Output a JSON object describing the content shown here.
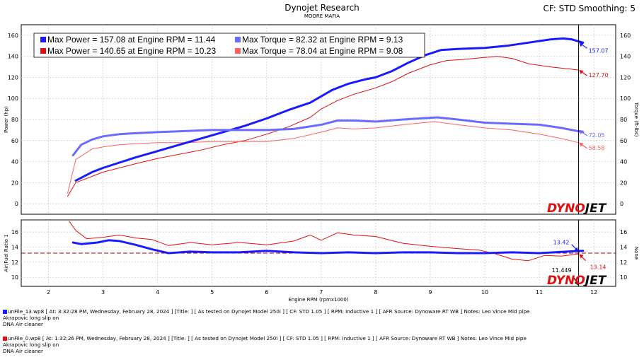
{
  "header": {
    "title": "Dynojet Research",
    "subtitle": "MOORE MAFIA",
    "cf_label": "CF: STD Smoothing: 5"
  },
  "legend": [
    {
      "text": "Max Power = 157.08 at Engine RPM = 11.44",
      "color": "#1a1aff"
    },
    {
      "text": "Max Torque = 82.32 at Engine RPM = 9.13",
      "color": "#6b6bff"
    },
    {
      "text": "Max Power = 140.65 at Engine RPM = 10.23",
      "color": "#e01010"
    },
    {
      "text": "Max Torque = 78.04 at Engine RPM = 9.08",
      "color": "#ff6060"
    }
  ],
  "runs": [
    {
      "line1": "unFile_13.wp8 [ At: 3:32:28 PM, Wednesday, February 28, 2024 ] [Title: ]  [ As tested on Dynojet Model 250i ] [ CF: STD 1.05 ] [ RPM: Inductive 1 ] [ AFR Source: Dynoware RT WB ] Notes: Leo Vince Mid pipe",
      "line2": "Akrapovic long slip on",
      "line3": "DNA Air cleaner",
      "color": "#1a1aff"
    },
    {
      "line1": "unFile_0.wp8 [ At: 1:32:26 PM, Wednesday, February 28, 2024 ] [Title: ]  [ As tested on Dynojet Model 250i ] [ CF: STD 1.05 ] [ RPM: Inductive 1 ] [ AFR Source: Dynoware RT WB ] Notes: Leo Vince Mid pipe",
      "line2": "Akrapovic long slip on",
      "line3": "DNA Air cleaner",
      "color": "#e01010"
    }
  ],
  "logo_text": "DYNOJET",
  "chart_data": [
    {
      "type": "line",
      "name": "power-torque",
      "ylabel_left": "Power (hp)",
      "ylabel_right": "Torque (ft-lbs)",
      "ylim_left": [
        -10,
        170
      ],
      "ylim_right": [
        -10,
        170
      ],
      "yticks_left": [
        0,
        20,
        40,
        60,
        80,
        100,
        120,
        140,
        160
      ],
      "yticks_right": [
        0,
        20,
        40,
        60,
        80,
        100,
        120,
        140,
        160
      ],
      "xlim": [
        1.5,
        12.4
      ],
      "cursor_x": 11.72,
      "cursor_labels": [
        {
          "text": "157.07",
          "x": 11.72,
          "y": 153,
          "color": "#1a1aff"
        },
        {
          "text": "127.70",
          "x": 11.72,
          "y": 127,
          "color": "#e01010"
        },
        {
          "text": "72.05",
          "x": 11.72,
          "y": 70,
          "color": "#6b6bff"
        },
        {
          "text": "58.58",
          "x": 11.72,
          "y": 58,
          "color": "#ff6060"
        }
      ],
      "series": [
        {
          "name": "Power",
          "color": "#1a1aff",
          "width": 3,
          "x": [
            2.5,
            2.8,
            3.0,
            3.3,
            3.6,
            4.0,
            4.4,
            4.8,
            5.2,
            5.6,
            6.0,
            6.4,
            6.8,
            7.2,
            7.5,
            7.8,
            8.0,
            8.3,
            8.6,
            8.9,
            9.2,
            9.5,
            10.0,
            10.4,
            10.8,
            11.2,
            11.44,
            11.6,
            11.8
          ],
          "y": [
            22,
            30,
            34,
            39,
            44,
            50,
            56,
            62,
            68,
            74,
            81,
            89,
            96,
            108,
            114,
            118,
            120,
            126,
            134,
            141,
            146,
            147,
            148,
            150,
            153,
            156,
            157,
            156,
            153
          ]
        },
        {
          "name": "Torque",
          "color": "#6b6bff",
          "width": 3,
          "x": [
            2.45,
            2.6,
            2.8,
            3.0,
            3.3,
            3.6,
            4.0,
            4.5,
            5.0,
            5.5,
            6.0,
            6.5,
            7.0,
            7.3,
            7.6,
            8.0,
            8.5,
            9.13,
            9.5,
            10.0,
            10.5,
            11.0,
            11.4,
            11.8
          ],
          "y": [
            46,
            56,
            61,
            64,
            66,
            67,
            68,
            69,
            70,
            70,
            70,
            71,
            75,
            79,
            79,
            78,
            80,
            82,
            80,
            77,
            76,
            75,
            72,
            68
          ]
        },
        {
          "name": "Power",
          "color": "#e01010",
          "width": 1,
          "x": [
            2.35,
            2.5,
            2.8,
            3.0,
            3.3,
            3.6,
            4.0,
            4.4,
            4.8,
            5.2,
            5.6,
            6.0,
            6.4,
            6.8,
            7.0,
            7.3,
            7.6,
            8.0,
            8.3,
            8.6,
            9.0,
            9.3,
            9.6,
            10.0,
            10.23,
            10.5,
            10.8,
            11.2,
            11.72
          ],
          "y": [
            7,
            20,
            26,
            30,
            34,
            38,
            43,
            47,
            51,
            56,
            60,
            66,
            73,
            82,
            90,
            98,
            104,
            110,
            116,
            124,
            132,
            136,
            137,
            139,
            140,
            138,
            133,
            130,
            127
          ]
        },
        {
          "name": "Torque",
          "color": "#ff6060",
          "width": 1,
          "x": [
            2.35,
            2.5,
            2.8,
            3.0,
            3.3,
            3.6,
            4.0,
            4.5,
            5.0,
            5.5,
            6.0,
            6.5,
            7.0,
            7.3,
            7.6,
            8.0,
            8.5,
            9.08,
            9.5,
            10.0,
            10.5,
            11.0,
            11.4,
            11.72
          ],
          "y": [
            10,
            42,
            52,
            54,
            56,
            57,
            58,
            58,
            59,
            59,
            59,
            62,
            68,
            72,
            71,
            72,
            75,
            78,
            75,
            72,
            70,
            66,
            62,
            58
          ]
        }
      ]
    },
    {
      "type": "line",
      "name": "air-fuel",
      "ylabel_left": "Air/Fuel Ratio 1",
      "ylabel_right": "None",
      "ylim_left": [
        8.8,
        17.6
      ],
      "yticks_left": [
        10,
        12,
        14,
        16
      ],
      "yticks_right": [
        10,
        12,
        14,
        16
      ],
      "xlabel": "Engine RPM (rpmx1000)",
      "xticks": [
        2,
        3,
        4,
        5,
        6,
        7,
        8,
        9,
        10,
        11,
        12
      ],
      "xlim": [
        1.5,
        12.4
      ],
      "reference_y": 13.2,
      "cursor_labels": [
        {
          "text": "13.42",
          "x": 11.72,
          "y": 13.42,
          "color": "#1a1aff"
        },
        {
          "text": "13.14",
          "x": 11.72,
          "y": 13.14,
          "color": "#e01010"
        },
        {
          "text": "11.449",
          "x": 11.72,
          "y": 11.449,
          "color": "#000000"
        }
      ],
      "series": [
        {
          "name": "AFR",
          "color": "#1a1aff",
          "width": 3,
          "x": [
            2.45,
            2.6,
            2.9,
            3.1,
            3.3,
            3.6,
            3.9,
            4.2,
            4.6,
            5.0,
            5.5,
            6.0,
            6.5,
            7.0,
            7.5,
            8.0,
            8.5,
            9.0,
            9.5,
            10.0,
            10.5,
            11.0,
            11.5,
            11.8
          ],
          "y": [
            14.6,
            14.4,
            14.6,
            14.9,
            14.8,
            14.3,
            13.7,
            13.2,
            13.4,
            13.3,
            13.3,
            13.5,
            13.3,
            13.2,
            13.3,
            13.2,
            13.3,
            13.3,
            13.2,
            13.2,
            13.3,
            13.2,
            13.4,
            13.5
          ]
        },
        {
          "name": "AFR",
          "color": "#e01010",
          "width": 1,
          "x": [
            2.38,
            2.5,
            2.7,
            3.0,
            3.3,
            3.6,
            3.9,
            4.2,
            4.6,
            5.0,
            5.5,
            6.0,
            6.5,
            6.8,
            7.0,
            7.3,
            7.6,
            8.0,
            8.5,
            9.0,
            9.5,
            9.9,
            10.2,
            10.5,
            10.8,
            11.1,
            11.4,
            11.72
          ],
          "y": [
            17.4,
            16.2,
            15.1,
            15.3,
            15.6,
            15.2,
            15.0,
            14.2,
            14.6,
            14.3,
            14.6,
            14.3,
            14.8,
            15.6,
            14.9,
            15.9,
            15.6,
            15.4,
            14.5,
            14.1,
            13.8,
            13.6,
            13.1,
            12.4,
            12.2,
            12.9,
            12.8,
            13.1
          ]
        }
      ]
    }
  ]
}
